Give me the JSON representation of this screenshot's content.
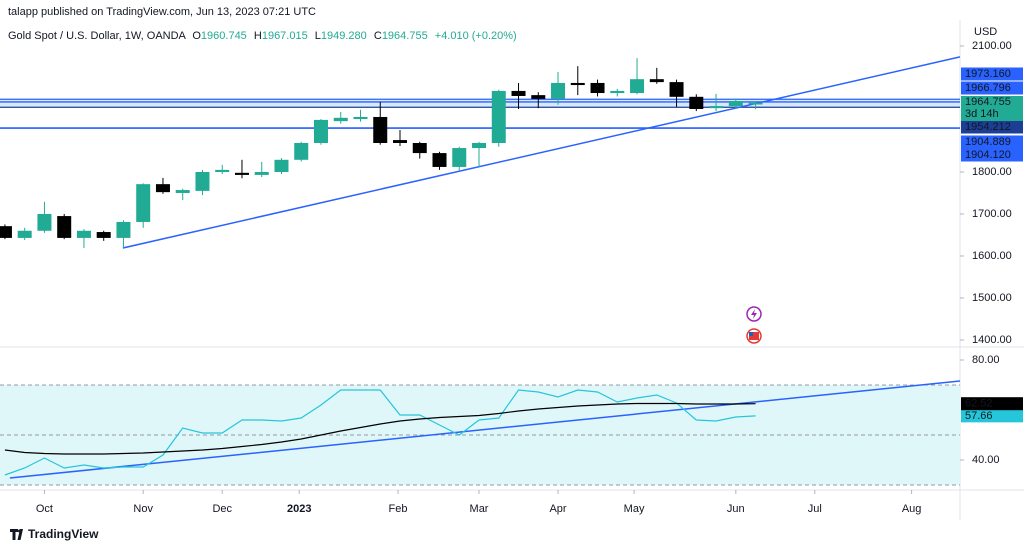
{
  "header": {
    "publisher": "talapp published on TradingView.com, Jun 13, 2023 07:21 UTC",
    "symbol": "Gold Spot / U.S. Dollar, 1W, OANDA",
    "ohlc": [
      {
        "key": "O",
        "value": "1960.745"
      },
      {
        "key": "H",
        "value": "1967.015"
      },
      {
        "key": "L",
        "value": "1949.280"
      },
      {
        "key": "C",
        "value": "1964.755"
      }
    ],
    "change": "+4.010 (+0.20%)"
  },
  "footer": {
    "brand": "TradingView"
  },
  "chart_data": [
    {
      "type": "candlestick",
      "y_label": "USD",
      "up_color": "#22ab94",
      "down_color": "#000000",
      "xlim": [
        -0.25,
        48.35
      ],
      "ylim": [
        1388,
        2150
      ],
      "yticks": [
        {
          "value": 2100,
          "label": "2100.00"
        },
        {
          "value": 1800,
          "label": "1800.00"
        },
        {
          "value": 1700,
          "label": "1700.00"
        },
        {
          "value": 1600,
          "label": "1600.00"
        },
        {
          "value": 1500,
          "label": "1500.00"
        },
        {
          "value": 1400,
          "label": "1400.00"
        }
      ],
      "open": [
        1671,
        1643,
        1660,
        1695,
        1643,
        1657,
        1643,
        1681,
        1771,
        1750,
        1755,
        1800,
        1798,
        1793,
        1800,
        1829,
        1869,
        1921,
        1926,
        1931,
        1876,
        1869,
        1845,
        1812,
        1857,
        1869,
        1993,
        1983,
        1974,
        2012,
        2012,
        1988,
        1988,
        2021,
        2014,
        1979,
        1952,
        1957,
        1960.745
      ],
      "high": [
        1675,
        1667,
        1729,
        1700,
        1664,
        1660,
        1685,
        1773,
        1786,
        1760,
        1805,
        1817,
        1829,
        1824,
        1833,
        1872,
        1926,
        1943,
        1948,
        1967,
        1900,
        1872,
        1848,
        1860,
        1872,
        1996,
        2012,
        1990,
        2038,
        2052,
        2020,
        1998,
        2071,
        2048,
        2020,
        1985,
        1986,
        1975,
        1967.015
      ],
      "low": [
        1640,
        1638,
        1655,
        1640,
        1619,
        1636,
        1619,
        1667,
        1748,
        1733,
        1745,
        1795,
        1785,
        1788,
        1795,
        1825,
        1865,
        1915,
        1920,
        1865,
        1862,
        1832,
        1805,
        1804,
        1812,
        1860,
        1950,
        1952,
        1960,
        1983,
        1980,
        1980,
        1985,
        2010,
        1955,
        1945,
        1945,
        1950,
        1949.28
      ],
      "close": [
        1643,
        1660,
        1700,
        1643,
        1660,
        1643,
        1681,
        1771,
        1752,
        1757,
        1800,
        1805,
        1793,
        1800,
        1829,
        1869,
        1924,
        1929,
        1931,
        1869,
        1869,
        1845,
        1812,
        1857,
        1869,
        1993,
        1981,
        1974,
        2012,
        2007,
        1988,
        1993,
        2021,
        2014,
        1979,
        1950,
        1957,
        1969,
        1964.755
      ],
      "current_color": "#22ab94",
      "countdown": "3d 14h",
      "tags": [
        {
          "value": 1973.16,
          "label": "1973.160",
          "color": "#2962ff"
        },
        {
          "value": 1966.796,
          "label": "1966.796",
          "color": "#2962ff"
        },
        {
          "value": 1954.212,
          "label": "1954.212",
          "color": "#1c3f95"
        },
        {
          "value": 1904.889,
          "label": "1904.889",
          "color": "#2962ff"
        },
        {
          "value": 1904.12,
          "label": "1904.120",
          "color": "#2962ff"
        }
      ],
      "trendline": {
        "x": [
          5.97,
          48.35
        ],
        "y": [
          1619,
          2074
        ],
        "color": "#2962ff"
      }
    },
    {
      "type": "line",
      "xlim": [
        -0.25,
        48.35
      ],
      "ylim": [
        28.8,
        84
      ],
      "yticks": [
        {
          "value": 80,
          "label": "80.00"
        },
        {
          "value": 40,
          "label": "40.00"
        }
      ],
      "xticks": [
        {
          "value": 2,
          "label": "Oct"
        },
        {
          "value": 7,
          "label": "Nov"
        },
        {
          "value": 11,
          "label": "Dec"
        },
        {
          "value": 14.9,
          "label": "2023"
        },
        {
          "value": 19.9,
          "label": "Feb"
        },
        {
          "value": 24,
          "label": "Mar"
        },
        {
          "value": 28,
          "label": "Apr"
        },
        {
          "value": 31.85,
          "label": "May"
        },
        {
          "value": 37,
          "label": "Jun"
        },
        {
          "value": 41,
          "label": "Jul"
        },
        {
          "value": 45.9,
          "label": "Aug"
        }
      ],
      "levels": [
        70,
        50,
        30
      ],
      "band_color": "#e0f7fa",
      "series": [
        {
          "color": "#26c6da",
          "tag_text": "#000000",
          "values": [
            34,
            36.8,
            40.8,
            36.8,
            38,
            36.8,
            37.2,
            37.2,
            42,
            52.8,
            50.8,
            50.8,
            56,
            56,
            55.6,
            56.8,
            62,
            68,
            68,
            68,
            58,
            58,
            54,
            50,
            56,
            56.8,
            68,
            67.2,
            65.2,
            68,
            67.2,
            63.2,
            64.8,
            66,
            62.8,
            56,
            55.6,
            57.2,
            57.66
          ]
        },
        {
          "color": "#000000",
          "tag_text": "#ffffff",
          "values": [
            44,
            43,
            42.6,
            42.4,
            42.4,
            42.4,
            42.6,
            42.8,
            43.2,
            43.6,
            44,
            44.6,
            45.4,
            46.2,
            47.2,
            48.4,
            50,
            51.6,
            53,
            54.4,
            55.6,
            56.4,
            57,
            57.4,
            57.8,
            58.6,
            59.6,
            60.4,
            61,
            61.6,
            62,
            62.4,
            62.6,
            62.6,
            62.6,
            62.4,
            62.4,
            62.4,
            62.52
          ]
        }
      ],
      "trendline": {
        "x": [
          0.25,
          48.35
        ],
        "y": [
          32.8,
          71.6
        ],
        "color": "#2962ff"
      }
    }
  ]
}
